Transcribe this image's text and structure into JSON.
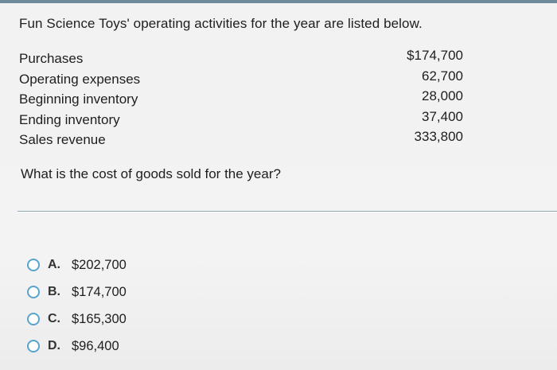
{
  "question": {
    "intro": "Fun Science Toys' operating activities for the year are listed below.",
    "prompt": "What is the cost of goods sold for the year?"
  },
  "items": [
    {
      "label": "Purchases",
      "value": "$174,700"
    },
    {
      "label": "Operating expenses",
      "value": "62,700"
    },
    {
      "label": "Beginning inventory",
      "value": "28,000"
    },
    {
      "label": "Ending inventory",
      "value": "37,400"
    },
    {
      "label": "Sales revenue",
      "value": "333,800"
    }
  ],
  "options": [
    {
      "letter": "A.",
      "value": "$202,700"
    },
    {
      "letter": "B.",
      "value": "$174,700"
    },
    {
      "letter": "C.",
      "value": "$165,300"
    },
    {
      "letter": "D.",
      "value": "$96,400"
    }
  ],
  "colors": {
    "radio_border": "#5aa3cc",
    "divider": "#8fa6b3",
    "top_strip": "#6d8a9a",
    "background": "#f2f2f2"
  },
  "icons": {
    "option_selector": "radio-button-icon"
  }
}
